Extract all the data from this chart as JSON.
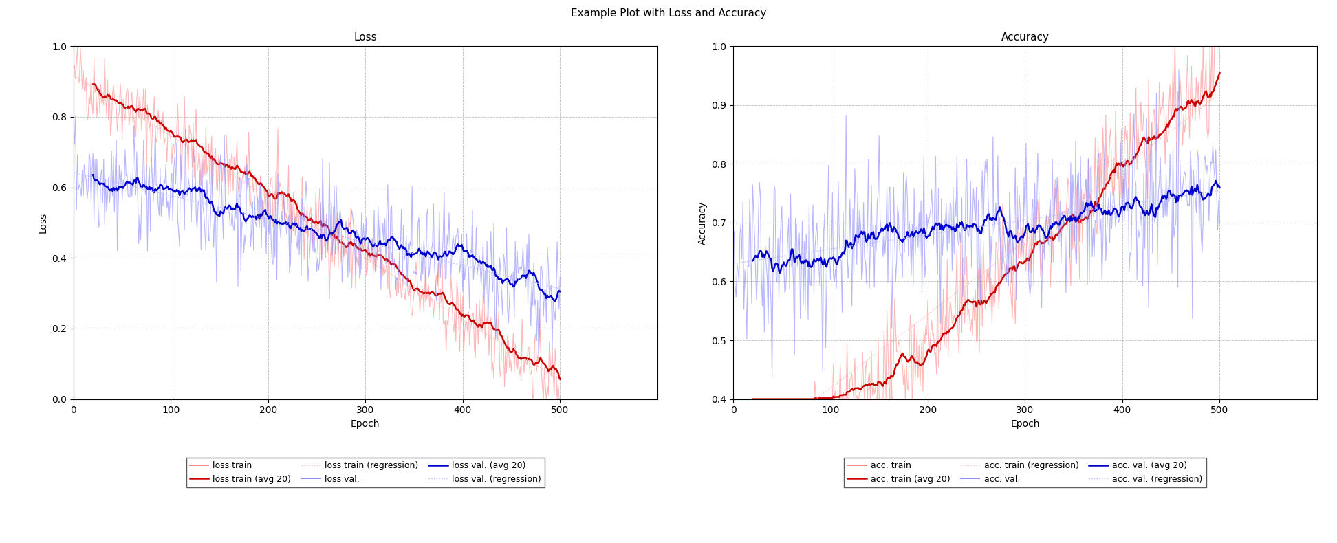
{
  "title": "Example Plot with Loss and Accuracy",
  "loss_title": "Loss",
  "acc_title": "Accuracy",
  "xlabel": "Epoch",
  "loss_ylabel": "Loss",
  "acc_ylabel": "Accuracy",
  "n_epochs": 500,
  "xlim": [
    0,
    600
  ],
  "loss_ylim": [
    0.0,
    1.0
  ],
  "acc_ylim": [
    0.4,
    1.0
  ],
  "avg_window": 20,
  "seed": 42,
  "train_color": "#ff8888",
  "val_color": "#8888ff",
  "train_avg_color": "#cc0000",
  "val_avg_color": "#0000cc",
  "train_reg_color": "#ffbbbb",
  "val_reg_color": "#bbbbff",
  "raw_alpha": 0.6,
  "avg_lw": 1.8,
  "raw_lw": 0.8,
  "reg_lw": 1.0,
  "loss_legend": [
    "loss train",
    "loss train (avg 20)",
    "loss train (regression)",
    "loss val.",
    "loss val. (avg 20)",
    "loss val. (regression)"
  ],
  "acc_legend": [
    "acc. train",
    "acc. train (avg 20)",
    "acc. train (regression)",
    "acc. val.",
    "acc. val. (avg 20)",
    "acc. val. (regression)"
  ],
  "xticks": [
    0,
    100,
    200,
    300,
    400,
    500
  ],
  "loss_yticks": [
    0.0,
    0.2,
    0.4,
    0.6,
    0.8,
    1.0
  ],
  "acc_yticks": [
    0.4,
    0.5,
    0.6,
    0.7,
    0.8,
    0.9,
    1.0
  ],
  "grid_color": "#bbbbbb",
  "bg_color": "#ffffff",
  "figsize": [
    19.44,
    7.9
  ],
  "dpi": 100
}
